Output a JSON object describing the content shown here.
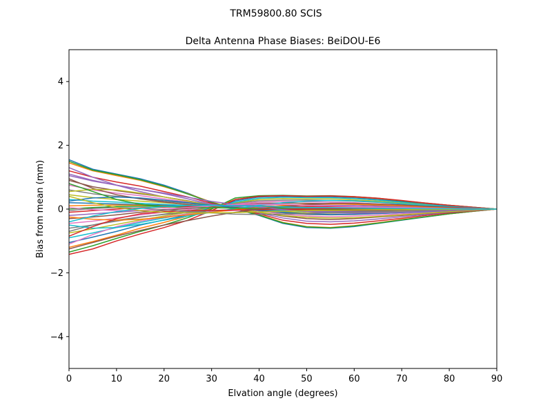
{
  "chart_data": {
    "type": "line",
    "suptitle": "TRM59800.80     SCIS",
    "title": "Delta Antenna Phase Biases: BeiDOU-E6",
    "xlabel": "Elvation angle (degrees)",
    "ylabel": "Bias from mean (mm)",
    "xlim": [
      0,
      90
    ],
    "ylim": [
      -5,
      5
    ],
    "xticks": [
      0,
      10,
      20,
      30,
      40,
      50,
      60,
      70,
      80,
      90
    ],
    "yticks": [
      -4,
      -2,
      0,
      2,
      4
    ],
    "ytick_labels": [
      "−4",
      "−2",
      "0",
      "2",
      "4"
    ],
    "grid": false,
    "legend": "none",
    "x": [
      0,
      5,
      10,
      15,
      20,
      25,
      30,
      35,
      40,
      45,
      50,
      55,
      60,
      65,
      70,
      75,
      80,
      85,
      90
    ],
    "colors": [
      "#1f77b4",
      "#ff7f0e",
      "#2ca02c",
      "#d62728",
      "#9467bd",
      "#8c564b",
      "#e377c2",
      "#7f7f7f",
      "#bcbd22",
      "#17becf"
    ],
    "series": [
      {
        "values": [
          1.55,
          1.25,
          1.1,
          0.95,
          0.75,
          0.5,
          0.2,
          0.0,
          -0.2,
          -0.45,
          -0.58,
          -0.6,
          -0.55,
          -0.45,
          -0.35,
          -0.25,
          -0.15,
          -0.07,
          0
        ]
      },
      {
        "values": [
          1.45,
          1.2,
          1.05,
          0.9,
          0.7,
          0.48,
          0.22,
          0.02,
          -0.18,
          -0.42,
          -0.55,
          -0.58,
          -0.52,
          -0.43,
          -0.33,
          -0.24,
          -0.15,
          -0.07,
          0
        ]
      },
      {
        "values": [
          1.5,
          1.22,
          1.08,
          0.92,
          0.72,
          0.47,
          0.21,
          0.01,
          -0.19,
          -0.43,
          -0.56,
          -0.59,
          -0.53,
          -0.44,
          -0.34,
          -0.24,
          -0.15,
          -0.07,
          0
        ]
      },
      {
        "values": [
          1.2,
          1.0,
          0.85,
          0.72,
          0.55,
          0.38,
          0.18,
          0.02,
          -0.15,
          -0.35,
          -0.45,
          -0.48,
          -0.44,
          -0.37,
          -0.29,
          -0.2,
          -0.12,
          -0.06,
          0
        ]
      },
      {
        "values": [
          1.05,
          0.88,
          0.75,
          0.62,
          0.48,
          0.32,
          0.15,
          0.02,
          -0.12,
          -0.28,
          -0.38,
          -0.4,
          -0.37,
          -0.31,
          -0.24,
          -0.17,
          -0.1,
          -0.05,
          0
        ]
      },
      {
        "values": [
          0.9,
          0.7,
          0.58,
          0.48,
          0.38,
          0.26,
          0.13,
          0.02,
          -0.1,
          -0.22,
          -0.3,
          -0.33,
          -0.3,
          -0.25,
          -0.2,
          -0.14,
          -0.09,
          -0.04,
          0
        ]
      },
      {
        "values": [
          0.75,
          0.6,
          0.5,
          0.42,
          0.32,
          0.22,
          0.12,
          0.03,
          -0.06,
          -0.16,
          -0.22,
          -0.24,
          -0.22,
          -0.19,
          -0.15,
          -0.11,
          -0.07,
          -0.03,
          0
        ]
      },
      {
        "values": [
          0.6,
          0.48,
          0.4,
          0.33,
          0.25,
          0.18,
          0.1,
          0.02,
          -0.05,
          -0.12,
          -0.17,
          -0.18,
          -0.17,
          -0.14,
          -0.11,
          -0.08,
          -0.05,
          -0.02,
          0
        ]
      },
      {
        "values": [
          0.45,
          0.36,
          0.3,
          0.25,
          0.2,
          0.14,
          0.08,
          0.02,
          -0.03,
          -0.08,
          -0.12,
          -0.13,
          -0.12,
          -0.1,
          -0.08,
          -0.06,
          -0.04,
          -0.02,
          0
        ]
      },
      {
        "values": [
          0.3,
          0.25,
          0.22,
          0.18,
          0.15,
          0.11,
          0.07,
          0.02,
          -0.02,
          -0.05,
          -0.08,
          -0.09,
          -0.08,
          -0.07,
          -0.05,
          -0.04,
          -0.03,
          -0.01,
          0
        ]
      },
      {
        "values": [
          0.2,
          0.18,
          0.16,
          0.14,
          0.12,
          0.09,
          0.06,
          0.03,
          0.0,
          -0.02,
          -0.04,
          -0.05,
          -0.05,
          -0.04,
          -0.03,
          -0.02,
          -0.02,
          -0.01,
          0
        ]
      },
      {
        "values": [
          0.1,
          0.12,
          0.13,
          0.12,
          0.1,
          0.08,
          0.06,
          0.04,
          0.02,
          0.0,
          -0.01,
          -0.02,
          -0.02,
          -0.02,
          -0.02,
          -0.01,
          -0.01,
          0.0,
          0
        ]
      },
      {
        "values": [
          0.0,
          0.05,
          0.08,
          0.09,
          0.09,
          0.08,
          0.07,
          0.06,
          0.05,
          0.04,
          0.03,
          0.02,
          0.02,
          0.01,
          0.01,
          0.01,
          0.0,
          0.0,
          0
        ]
      },
      {
        "values": [
          -0.1,
          -0.05,
          0.0,
          0.04,
          0.06,
          0.08,
          0.09,
          0.1,
          0.1,
          0.09,
          0.08,
          0.07,
          0.06,
          0.05,
          0.04,
          0.03,
          0.02,
          0.01,
          0
        ]
      },
      {
        "values": [
          -0.2,
          -0.15,
          -0.1,
          -0.05,
          0.0,
          0.04,
          0.08,
          0.12,
          0.14,
          0.14,
          0.13,
          0.12,
          0.11,
          0.09,
          0.07,
          0.05,
          0.03,
          0.02,
          0
        ]
      },
      {
        "values": [
          -0.3,
          -0.25,
          -0.18,
          -0.1,
          -0.04,
          0.02,
          0.08,
          0.14,
          0.18,
          0.19,
          0.18,
          0.17,
          0.15,
          0.12,
          0.1,
          0.07,
          0.05,
          0.02,
          0
        ]
      },
      {
        "values": [
          -0.45,
          -0.38,
          -0.28,
          -0.18,
          -0.1,
          -0.02,
          0.08,
          0.16,
          0.22,
          0.24,
          0.23,
          0.22,
          0.2,
          0.16,
          0.13,
          0.09,
          0.06,
          0.03,
          0
        ]
      },
      {
        "values": [
          -0.6,
          -0.5,
          -0.38,
          -0.26,
          -0.16,
          -0.06,
          0.06,
          0.18,
          0.26,
          0.28,
          0.28,
          0.27,
          0.25,
          0.21,
          0.16,
          0.12,
          0.08,
          0.04,
          0
        ]
      },
      {
        "values": [
          -0.75,
          -0.62,
          -0.48,
          -0.34,
          -0.22,
          -0.1,
          0.05,
          0.2,
          0.3,
          0.33,
          0.32,
          0.32,
          0.29,
          0.25,
          0.19,
          0.14,
          0.09,
          0.04,
          0
        ]
      },
      {
        "values": [
          -0.9,
          -0.75,
          -0.58,
          -0.42,
          -0.28,
          -0.14,
          0.04,
          0.22,
          0.34,
          0.37,
          0.36,
          0.36,
          0.33,
          0.28,
          0.22,
          0.16,
          0.1,
          0.05,
          0
        ]
      },
      {
        "values": [
          -1.05,
          -0.88,
          -0.7,
          -0.5,
          -0.34,
          -0.18,
          0.03,
          0.26,
          0.38,
          0.4,
          0.39,
          0.39,
          0.36,
          0.31,
          0.24,
          0.17,
          0.11,
          0.05,
          0
        ]
      },
      {
        "values": [
          -1.2,
          -1.02,
          -0.82,
          -0.6,
          -0.42,
          -0.22,
          0.02,
          0.3,
          0.4,
          0.42,
          0.4,
          0.41,
          0.38,
          0.33,
          0.26,
          0.18,
          0.12,
          0.06,
          0
        ]
      },
      {
        "values": [
          -1.35,
          -1.15,
          -0.92,
          -0.7,
          -0.5,
          -0.27,
          0.0,
          0.35,
          0.42,
          0.43,
          0.41,
          0.42,
          0.39,
          0.34,
          0.26,
          0.19,
          0.12,
          0.06,
          0
        ]
      },
      {
        "values": [
          -1.42,
          -1.25,
          -1.0,
          -0.78,
          -0.58,
          -0.35,
          -0.05,
          0.3,
          0.4,
          0.42,
          0.4,
          0.41,
          0.39,
          0.34,
          0.27,
          0.19,
          0.12,
          0.06,
          0
        ]
      },
      {
        "values": [
          1.3,
          1.0,
          0.75,
          0.55,
          0.38,
          0.25,
          0.15,
          0.08,
          0.03,
          -0.02,
          -0.06,
          -0.08,
          -0.08,
          -0.07,
          -0.06,
          -0.04,
          -0.03,
          -0.01,
          0
        ]
      },
      {
        "values": [
          0.95,
          0.65,
          0.45,
          0.32,
          0.22,
          0.14,
          0.08,
          0.04,
          0.01,
          -0.02,
          -0.04,
          -0.05,
          -0.05,
          -0.04,
          -0.03,
          -0.02,
          -0.02,
          -0.01,
          0
        ]
      },
      {
        "values": [
          -1.1,
          -0.8,
          -0.55,
          -0.38,
          -0.25,
          -0.15,
          -0.08,
          -0.04,
          -0.01,
          0.02,
          0.04,
          0.05,
          0.05,
          0.04,
          0.03,
          0.02,
          0.02,
          0.01,
          0
        ]
      },
      {
        "values": [
          -0.7,
          -0.5,
          -0.35,
          -0.25,
          -0.17,
          -0.1,
          -0.05,
          -0.02,
          0.0,
          0.02,
          0.03,
          0.03,
          0.03,
          0.03,
          0.02,
          0.02,
          0.01,
          0.0,
          0
        ]
      },
      {
        "values": [
          0.55,
          0.62,
          0.6,
          0.5,
          0.38,
          0.25,
          0.12,
          0.0,
          -0.1,
          -0.2,
          -0.26,
          -0.28,
          -0.27,
          -0.23,
          -0.18,
          -0.13,
          -0.08,
          -0.04,
          0
        ]
      },
      {
        "values": [
          -0.5,
          -0.6,
          -0.58,
          -0.48,
          -0.35,
          -0.22,
          -0.1,
          0.02,
          0.12,
          0.2,
          0.25,
          0.27,
          0.26,
          0.22,
          0.17,
          0.12,
          0.08,
          0.04,
          0
        ]
      },
      {
        "values": [
          0.25,
          0.35,
          0.38,
          0.35,
          0.28,
          0.2,
          0.12,
          0.04,
          -0.04,
          -0.1,
          -0.15,
          -0.17,
          -0.16,
          -0.14,
          -0.11,
          -0.08,
          -0.05,
          -0.02,
          0
        ]
      },
      {
        "values": [
          -0.25,
          -0.32,
          -0.35,
          -0.32,
          -0.26,
          -0.18,
          -0.1,
          -0.02,
          0.05,
          0.11,
          0.15,
          0.16,
          0.15,
          0.13,
          0.1,
          0.07,
          0.05,
          0.02,
          0
        ]
      },
      {
        "values": [
          0.8,
          0.55,
          0.3,
          0.15,
          0.08,
          0.05,
          0.04,
          0.03,
          0.02,
          0.01,
          0.0,
          -0.01,
          -0.01,
          -0.01,
          -0.01,
          0.0,
          0.0,
          0.0,
          0
        ]
      },
      {
        "values": [
          -0.85,
          -0.55,
          -0.3,
          -0.15,
          -0.08,
          -0.05,
          -0.04,
          -0.03,
          -0.02,
          -0.01,
          0.0,
          0.01,
          0.01,
          0.01,
          0.01,
          0.0,
          0.0,
          0.0,
          0
        ]
      },
      {
        "values": [
          1.1,
          0.9,
          0.75,
          0.62,
          0.5,
          0.37,
          0.24,
          0.14,
          0.06,
          -0.02,
          -0.08,
          -0.12,
          -0.13,
          -0.12,
          -0.1,
          -0.07,
          -0.05,
          -0.02,
          0
        ]
      },
      {
        "values": [
          -1.25,
          -1.05,
          -0.85,
          -0.67,
          -0.5,
          -0.36,
          -0.22,
          -0.1,
          0.0,
          0.08,
          0.14,
          0.18,
          0.18,
          0.16,
          0.13,
          0.09,
          0.06,
          0.03,
          0
        ]
      },
      {
        "values": [
          0.05,
          -0.02,
          -0.05,
          -0.04,
          0.0,
          0.05,
          0.1,
          0.14,
          0.16,
          0.15,
          0.12,
          0.1,
          0.08,
          0.06,
          0.05,
          0.03,
          0.02,
          0.01,
          0
        ]
      },
      {
        "values": [
          -0.05,
          0.02,
          0.05,
          0.03,
          -0.02,
          -0.07,
          -0.12,
          -0.16,
          -0.17,
          -0.16,
          -0.14,
          -0.12,
          -0.1,
          -0.08,
          -0.06,
          -0.04,
          -0.02,
          -0.01,
          0
        ]
      },
      {
        "values": [
          0.4,
          0.2,
          0.05,
          -0.05,
          -0.1,
          -0.12,
          -0.12,
          -0.11,
          -0.09,
          -0.07,
          -0.05,
          -0.04,
          -0.03,
          -0.02,
          -0.02,
          -0.01,
          -0.01,
          0.0,
          0
        ]
      },
      {
        "values": [
          -0.4,
          -0.22,
          -0.08,
          0.02,
          0.08,
          0.11,
          0.12,
          0.11,
          0.09,
          0.07,
          0.05,
          0.04,
          0.03,
          0.02,
          0.02,
          0.01,
          0.01,
          0.0,
          0
        ]
      }
    ]
  }
}
